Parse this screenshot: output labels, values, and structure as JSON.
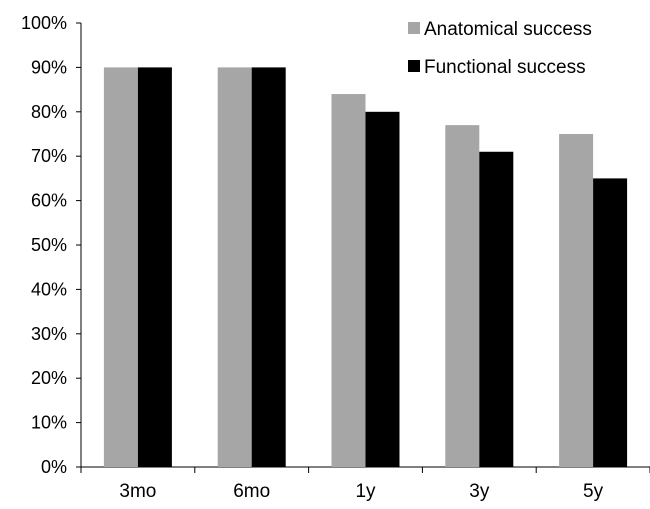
{
  "chart_data": {
    "type": "bar",
    "title": "",
    "xlabel": "",
    "ylabel": "",
    "categories": [
      "3mo",
      "6mo",
      "1y",
      "3y",
      "5y"
    ],
    "series": [
      {
        "name": "Anatomical success",
        "values": [
          90,
          90,
          84,
          77,
          75
        ],
        "color": "#a6a6a6"
      },
      {
        "name": "Functional success",
        "values": [
          90,
          90,
          80,
          71,
          65
        ],
        "color": "#000000"
      }
    ],
    "ylim": [
      0,
      100
    ],
    "yticks": [
      "0%",
      "10%",
      "20%",
      "30%",
      "40%",
      "50%",
      "60%",
      "70%",
      "80%",
      "90%",
      "100%"
    ],
    "y_unit": "%",
    "grid": false,
    "legend_position": "top-right"
  }
}
